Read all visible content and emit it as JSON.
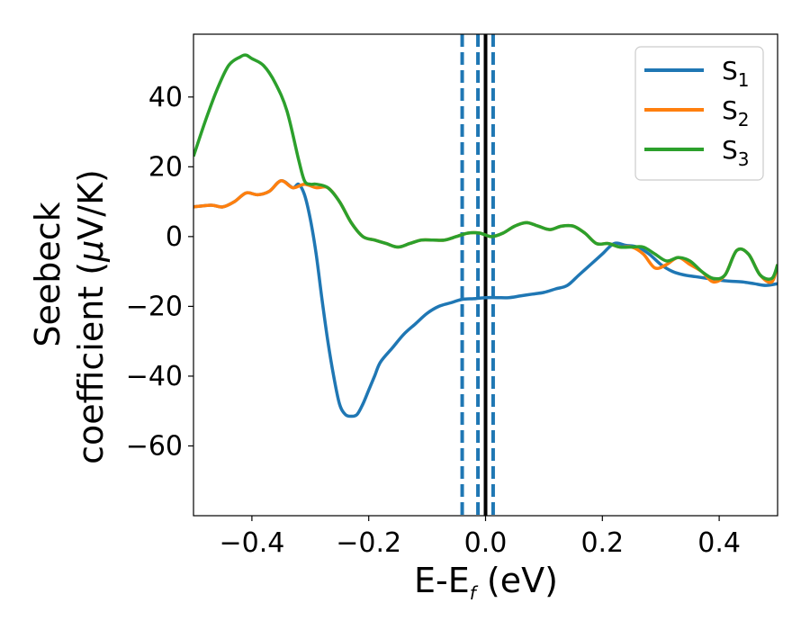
{
  "chart_data": {
    "type": "line",
    "xlabel": "E-E",
    "xlabel_sub": "f",
    "xlabel_unit": " (eV)",
    "ylabel_line1": "Seebeck",
    "ylabel_line2_text": "coefficient  (",
    "ylabel_line2_mu": "μ",
    "ylabel_line2_unit": "V/K)",
    "xlim": [
      -0.5,
      0.5
    ],
    "ylim": [
      -80,
      58
    ],
    "xticks": [
      -0.4,
      -0.2,
      0.0,
      0.2,
      0.4
    ],
    "xtick_labels": [
      "−0.4",
      "−0.2",
      "0.0",
      "0.2",
      "0.4"
    ],
    "yticks": [
      -60,
      -40,
      -20,
      0,
      20,
      40
    ],
    "ytick_labels": [
      "−60",
      "−40",
      "−20",
      "0",
      "20",
      "40"
    ],
    "grid": false,
    "legend_position": "top-right",
    "vlines": [
      {
        "x": 0.0,
        "style": "solid",
        "color": "#000000"
      },
      {
        "x": -0.04,
        "style": "dashed",
        "color": "#1f77b4"
      },
      {
        "x": -0.013,
        "style": "dashed",
        "color": "#1f77b4"
      },
      {
        "x": 0.013,
        "style": "dashed",
        "color": "#1f77b4"
      }
    ],
    "series": [
      {
        "name": "S",
        "sub": "1",
        "color": "#1f77b4",
        "x": [
          -0.5,
          -0.47,
          -0.45,
          -0.43,
          -0.41,
          -0.39,
          -0.37,
          -0.35,
          -0.33,
          -0.32,
          -0.31,
          -0.3,
          -0.29,
          -0.28,
          -0.27,
          -0.26,
          -0.25,
          -0.24,
          -0.23,
          -0.22,
          -0.21,
          -0.2,
          -0.19,
          -0.18,
          -0.16,
          -0.14,
          -0.12,
          -0.1,
          -0.08,
          -0.06,
          -0.04,
          -0.02,
          0.0,
          0.02,
          0.04,
          0.06,
          0.08,
          0.1,
          0.12,
          0.14,
          0.16,
          0.18,
          0.2,
          0.22,
          0.24,
          0.26,
          0.28,
          0.3,
          0.32,
          0.34,
          0.36,
          0.38,
          0.4,
          0.42,
          0.44,
          0.46,
          0.48,
          0.5
        ],
        "y": [
          8.5,
          9,
          8.5,
          10,
          12.5,
          12,
          13,
          16,
          14,
          15,
          12,
          5,
          -5,
          -18,
          -30,
          -40,
          -48,
          -51,
          -51.5,
          -51,
          -48,
          -44,
          -40,
          -36,
          -32,
          -28,
          -25,
          -22,
          -20,
          -19,
          -18,
          -17.8,
          -17.5,
          -17.5,
          -17.5,
          -17,
          -16.5,
          -16,
          -15,
          -14,
          -11,
          -8,
          -5,
          -2,
          -2.5,
          -3,
          -5,
          -8,
          -10,
          -11,
          -11.5,
          -12,
          -12.5,
          -12.8,
          -13,
          -13.5,
          -14,
          -13.5
        ]
      },
      {
        "name": "S",
        "sub": "2",
        "color": "#ff7f0e",
        "x": [
          -0.5,
          -0.47,
          -0.45,
          -0.43,
          -0.41,
          -0.39,
          -0.37,
          -0.35,
          -0.33,
          -0.31,
          -0.29,
          -0.27,
          -0.25,
          -0.23,
          -0.21,
          -0.19,
          -0.17,
          -0.15,
          -0.13,
          -0.11,
          -0.09,
          -0.07,
          -0.05,
          -0.03,
          -0.01,
          0.01,
          0.03,
          0.05,
          0.07,
          0.09,
          0.11,
          0.13,
          0.15,
          0.17,
          0.19,
          0.21,
          0.23,
          0.25,
          0.27,
          0.29,
          0.31,
          0.33,
          0.35,
          0.37,
          0.39,
          0.41,
          0.43,
          0.45,
          0.47,
          0.49,
          0.5
        ],
        "y": [
          8.5,
          9,
          8.5,
          10,
          12.5,
          12,
          13,
          16,
          14,
          15,
          14,
          14,
          10,
          4,
          0,
          -1,
          -2,
          -3,
          -2,
          -1,
          -1,
          -1,
          0,
          1,
          1,
          0,
          1,
          3,
          4,
          3,
          2,
          3,
          3,
          1,
          -2,
          -2,
          -3,
          -3,
          -5,
          -9,
          -8,
          -6,
          -8,
          -10,
          -13,
          -11,
          -4,
          -5,
          -11,
          -13,
          -8
        ]
      },
      {
        "name": "S",
        "sub": "3",
        "color": "#2ca02c",
        "x": [
          -0.5,
          -0.48,
          -0.46,
          -0.44,
          -0.42,
          -0.41,
          -0.4,
          -0.38,
          -0.36,
          -0.34,
          -0.32,
          -0.31,
          -0.3,
          -0.29,
          -0.27,
          -0.25,
          -0.23,
          -0.21,
          -0.19,
          -0.17,
          -0.15,
          -0.13,
          -0.11,
          -0.09,
          -0.07,
          -0.05,
          -0.03,
          -0.01,
          0.01,
          0.03,
          0.05,
          0.07,
          0.09,
          0.11,
          0.13,
          0.15,
          0.17,
          0.19,
          0.21,
          0.23,
          0.25,
          0.27,
          0.29,
          0.31,
          0.33,
          0.35,
          0.37,
          0.39,
          0.41,
          0.43,
          0.45,
          0.47,
          0.49,
          0.5
        ],
        "y": [
          23,
          33,
          42,
          49,
          51.5,
          52,
          51,
          49,
          44,
          36,
          22,
          16,
          15,
          15,
          14,
          10,
          4,
          0,
          -1,
          -2,
          -3,
          -2,
          -1,
          -1,
          -1,
          0,
          1,
          1,
          0,
          1,
          3,
          4,
          3,
          2,
          3,
          3,
          1,
          -2,
          -2,
          -3,
          -3,
          -3,
          -5,
          -7,
          -6,
          -7,
          -10,
          -12,
          -11,
          -4,
          -5,
          -11,
          -12,
          -8
        ]
      }
    ]
  }
}
